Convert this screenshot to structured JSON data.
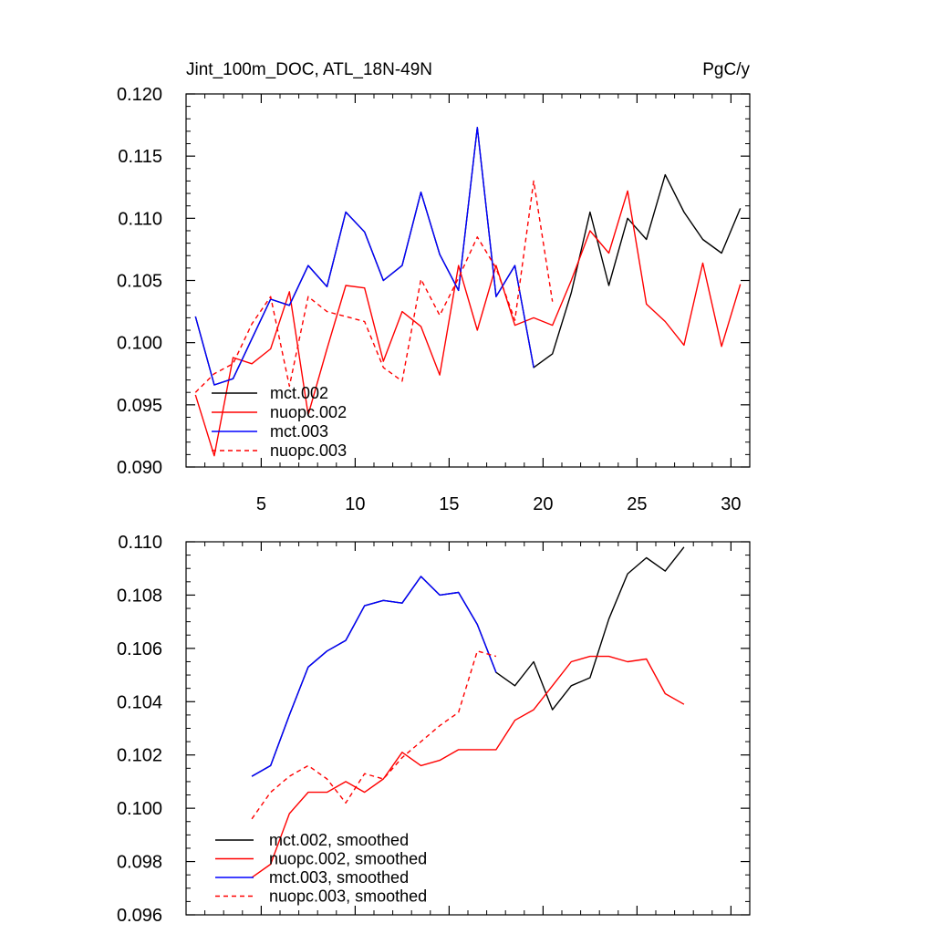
{
  "chart_data": [
    {
      "type": "line",
      "title": "Jint_100m_DOC, ATL_18N-49N",
      "units_label": "PgC/y",
      "xlim": [
        1,
        31
      ],
      "ylim": [
        0.09,
        0.12
      ],
      "x_ticks": [
        5,
        10,
        15,
        20,
        25,
        30
      ],
      "x_tick_labels": [
        "5",
        "10",
        "15",
        "20",
        "25",
        "30"
      ],
      "y_ticks": [
        0.09,
        0.095,
        0.1,
        0.105,
        0.11,
        0.115,
        0.12
      ],
      "y_tick_labels": [
        "0.090",
        "0.095",
        "0.100",
        "0.105",
        "0.110",
        "0.115",
        "0.120"
      ],
      "x_minor_step": 1,
      "y_minor_step": 0.001,
      "legend_position": "bottom-left",
      "series": [
        {
          "name": "mct.002",
          "color": "#000000",
          "dash": "solid",
          "x": [
            1.5,
            2.5,
            3.5,
            4.5,
            5.5,
            6.5,
            7.5,
            8.5,
            9.5,
            10.5,
            11.5,
            12.5,
            13.5,
            14.5,
            15.5,
            16.5,
            17.5,
            18.5,
            19.5,
            20.5,
            21.5,
            22.5,
            23.5,
            24.5,
            25.5,
            26.5,
            27.5,
            28.5,
            29.5,
            30.5
          ],
          "values": [
            0.1021,
            0.0966,
            0.0971,
            0.1003,
            0.1035,
            0.103,
            0.1062,
            0.1045,
            0.1105,
            0.1089,
            0.105,
            0.1062,
            0.1121,
            0.1071,
            0.1042,
            0.1173,
            0.1037,
            0.1062,
            0.098,
            0.0991,
            0.104,
            0.1105,
            0.1046,
            0.11,
            0.1083,
            0.1135,
            0.1105,
            0.1083,
            0.1072,
            0.1108
          ]
        },
        {
          "name": "nuopc.002",
          "color": "#ff0000",
          "dash": "solid",
          "x": [
            1.5,
            2.5,
            3.5,
            4.5,
            5.5,
            6.5,
            7.5,
            8.5,
            9.5,
            10.5,
            11.5,
            12.5,
            13.5,
            14.5,
            15.5,
            16.5,
            17.5,
            18.5,
            19.5,
            20.5,
            21.5,
            22.5,
            23.5,
            24.5,
            25.5,
            26.5,
            27.5,
            28.5,
            29.5,
            30.5
          ],
          "values": [
            0.0958,
            0.0909,
            0.0988,
            0.0983,
            0.0995,
            0.1041,
            0.0942,
            0.0995,
            0.1046,
            0.1044,
            0.0985,
            0.1025,
            0.1013,
            0.0974,
            0.1062,
            0.101,
            0.1062,
            0.1014,
            0.102,
            0.1014,
            0.105,
            0.109,
            0.1072,
            0.1122,
            0.1031,
            0.1017,
            0.0998,
            0.1064,
            0.0997,
            0.1047
          ]
        },
        {
          "name": "mct.003",
          "color": "#0000ff",
          "dash": "solid",
          "x": [
            1.5,
            2.5,
            3.5,
            4.5,
            5.5,
            6.5,
            7.5,
            8.5,
            9.5,
            10.5,
            11.5,
            12.5,
            13.5,
            14.5,
            15.5,
            16.5,
            17.5,
            18.5,
            19.5
          ],
          "values": [
            0.1021,
            0.0966,
            0.0971,
            0.1003,
            0.1035,
            0.103,
            0.1062,
            0.1045,
            0.1105,
            0.1089,
            0.105,
            0.1062,
            0.1121,
            0.1071,
            0.1042,
            0.1173,
            0.1037,
            0.1062,
            0.098
          ]
        },
        {
          "name": "nuopc.003",
          "color": "#ff0000",
          "dash": "dashed",
          "x": [
            1.5,
            2.5,
            3.5,
            4.5,
            5.5,
            6.5,
            7.5,
            8.5,
            9.5,
            10.5,
            11.5,
            12.5,
            13.5,
            14.5,
            15.5,
            16.5,
            17.5,
            18.5,
            19.5,
            20.5
          ],
          "values": [
            0.096,
            0.0975,
            0.0983,
            0.1015,
            0.1037,
            0.0965,
            0.1037,
            0.1025,
            0.1021,
            0.1017,
            0.098,
            0.0969,
            0.1051,
            0.1022,
            0.1052,
            0.1085,
            0.106,
            0.1018,
            0.113,
            0.1033
          ]
        }
      ]
    },
    {
      "type": "line",
      "xlim": [
        1,
        31
      ],
      "ylim": [
        0.096,
        0.11
      ],
      "x_ticks": [
        5,
        10,
        15,
        20,
        25,
        30
      ],
      "x_tick_labels": [],
      "y_ticks": [
        0.096,
        0.098,
        0.1,
        0.102,
        0.104,
        0.106,
        0.108,
        0.11
      ],
      "y_tick_labels": [
        "0.096",
        "0.098",
        "0.100",
        "0.102",
        "0.104",
        "0.106",
        "0.108",
        "0.110"
      ],
      "x_minor_step": 1,
      "y_minor_step": 0.0005,
      "legend_position": "bottom-left",
      "series": [
        {
          "name": "mct.002, smoothed",
          "color": "#000000",
          "dash": "solid",
          "x": [
            4.5,
            5.5,
            6.5,
            7.5,
            8.5,
            9.5,
            10.5,
            11.5,
            12.5,
            13.5,
            14.5,
            15.5,
            16.5,
            17.5,
            18.5,
            19.5,
            20.5,
            21.5,
            22.5,
            23.5,
            24.5,
            25.5,
            26.5,
            27.5
          ],
          "values": [
            0.1012,
            0.1016,
            0.1035,
            0.1053,
            0.1059,
            0.1063,
            0.1076,
            0.1078,
            0.1077,
            0.1087,
            0.108,
            0.1081,
            0.1069,
            0.1051,
            0.1046,
            0.1055,
            0.1037,
            0.1046,
            0.1049,
            0.1071,
            0.1088,
            0.1094,
            0.1089,
            0.1098
          ]
        },
        {
          "name": "nuopc.002, smoothed",
          "color": "#ff0000",
          "dash": "solid",
          "x": [
            4.5,
            5.5,
            6.5,
            7.5,
            8.5,
            9.5,
            10.5,
            11.5,
            12.5,
            13.5,
            14.5,
            15.5,
            16.5,
            17.5,
            18.5,
            19.5,
            20.5,
            21.5,
            22.5,
            23.5,
            24.5,
            25.5,
            26.5,
            27.5
          ],
          "values": [
            0.0974,
            0.0979,
            0.0998,
            0.1006,
            0.1006,
            0.101,
            0.1006,
            0.1011,
            0.1021,
            0.1016,
            0.1018,
            0.1022,
            0.1022,
            0.1022,
            0.1033,
            0.1037,
            0.1046,
            0.1055,
            0.1057,
            0.1057,
            0.1055,
            0.1056,
            0.1043,
            0.1039
          ]
        },
        {
          "name": "mct.003, smoothed",
          "color": "#0000ff",
          "dash": "solid",
          "x": [
            4.5,
            5.5,
            6.5,
            7.5,
            8.5,
            9.5,
            10.5,
            11.5,
            12.5,
            13.5,
            14.5,
            15.5,
            16.5,
            17.5
          ],
          "values": [
            0.1012,
            0.1016,
            0.1035,
            0.1053,
            0.1059,
            0.1063,
            0.1076,
            0.1078,
            0.1077,
            0.1087,
            0.108,
            0.1081,
            0.1069,
            0.1051
          ]
        },
        {
          "name": "nuopc.003, smoothed",
          "color": "#ff0000",
          "dash": "dashed",
          "x": [
            4.5,
            5.5,
            6.5,
            7.5,
            8.5,
            9.5,
            10.5,
            11.5,
            12.5,
            13.5,
            14.5,
            15.5,
            16.5,
            17.5
          ],
          "values": [
            0.0996,
            0.1006,
            0.1012,
            0.1016,
            0.1011,
            0.1002,
            0.1013,
            0.1011,
            0.1019,
            0.1025,
            0.1031,
            0.1036,
            0.1059,
            0.1057
          ]
        }
      ]
    }
  ]
}
